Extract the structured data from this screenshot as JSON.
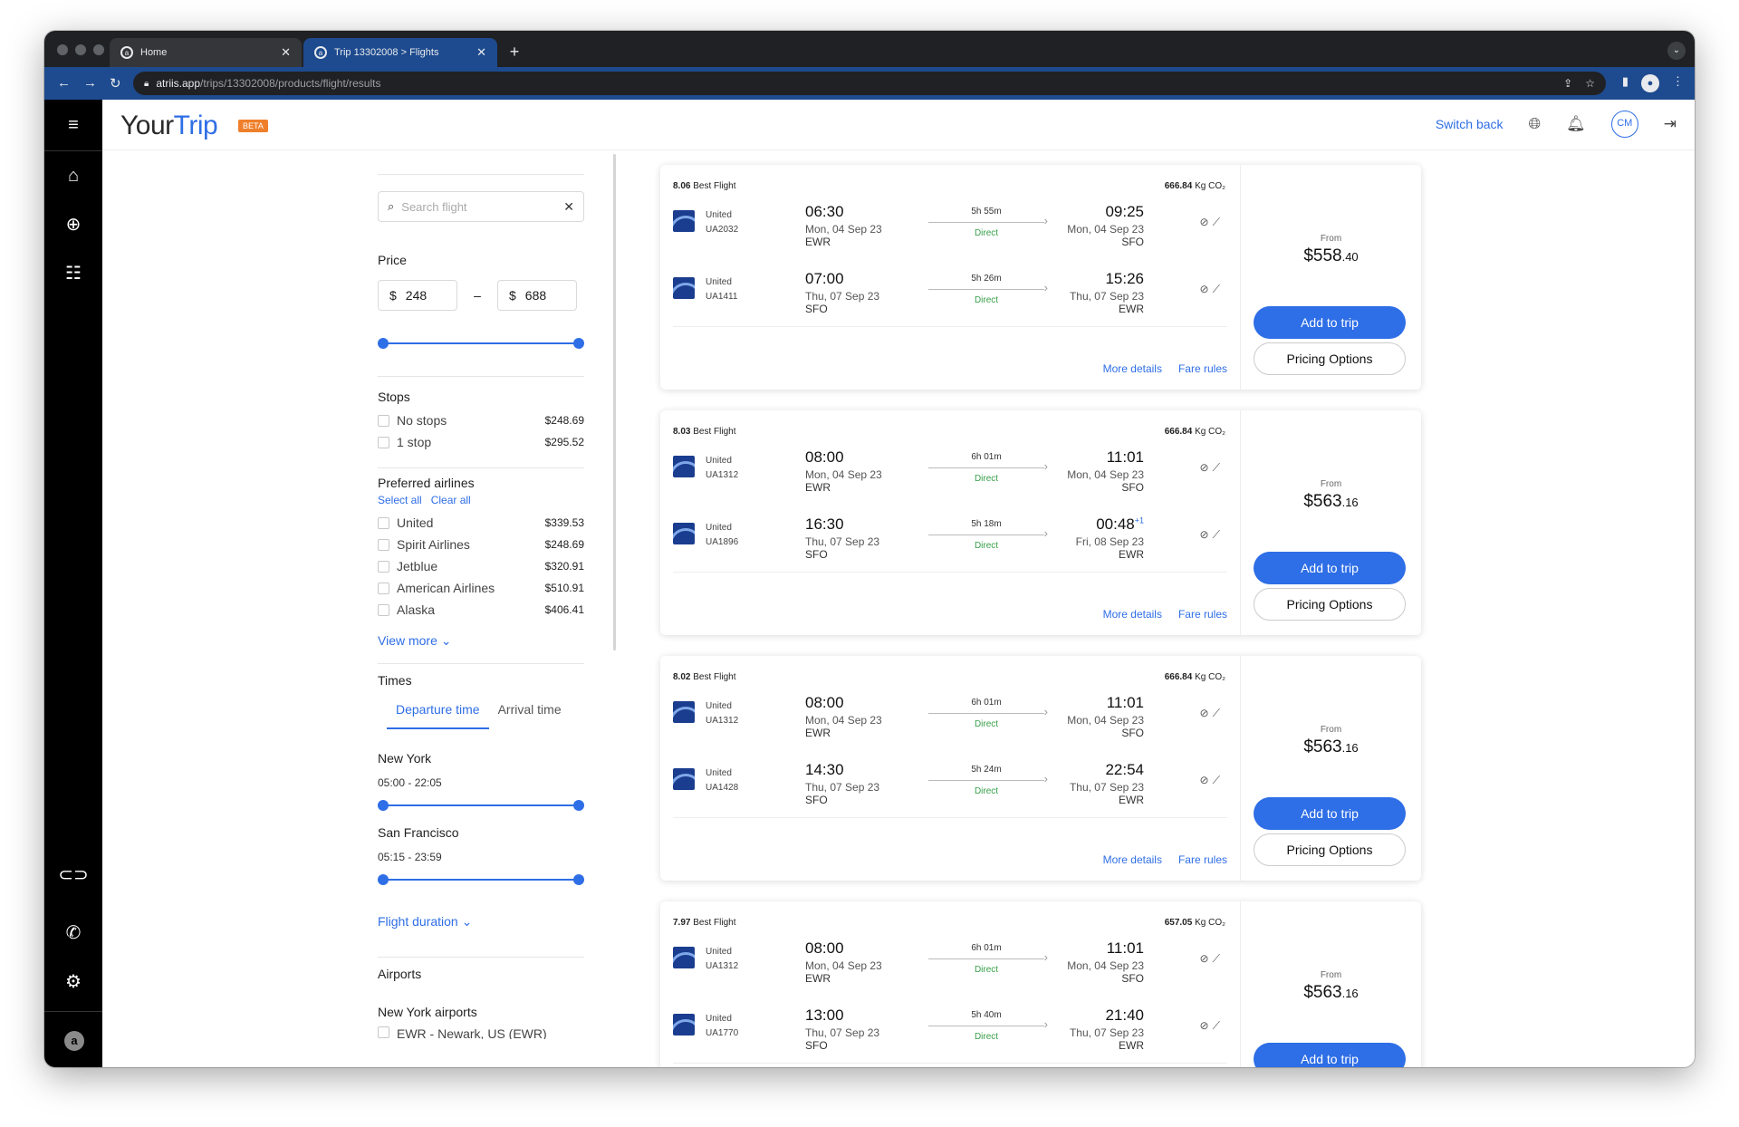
{
  "browser": {
    "tabs": [
      {
        "title": "Home",
        "favicon": "a"
      },
      {
        "title": "Trip 13302008 > Flights",
        "favicon": "a"
      }
    ],
    "url_host": "atriis.app",
    "url_path": "/trips/13302008/products/flight/results"
  },
  "header": {
    "brand_a": "Your",
    "brand_b": "Trip",
    "badge": "BETA",
    "switch_back": "Switch back",
    "avatar": "CM"
  },
  "filters": {
    "search_placeholder": "Search flight",
    "price_title": "Price",
    "currency": "$",
    "price_min": "248",
    "price_max": "688",
    "stops_title": "Stops",
    "stops": [
      {
        "label": "No stops",
        "value": "$248.69"
      },
      {
        "label": "1 stop",
        "value": "$295.52"
      }
    ],
    "airlines_title": "Preferred airlines",
    "select_all": "Select all",
    "clear_all": "Clear all",
    "airlines": [
      {
        "label": "United",
        "value": "$339.53"
      },
      {
        "label": "Spirit Airlines",
        "value": "$248.69"
      },
      {
        "label": "Jetblue",
        "value": "$320.91"
      },
      {
        "label": "American Airlines",
        "value": "$510.91"
      },
      {
        "label": "Alaska",
        "value": "$406.41"
      }
    ],
    "view_more": "View more",
    "times_title": "Times",
    "tab_departure": "Departure time",
    "tab_arrival": "Arrival time",
    "city1": "New York",
    "city1_range": "05:00 - 22:05",
    "city2": "San Francisco",
    "city2_range": "05:15 - 23:59",
    "flight_duration": "Flight duration",
    "airports_title": "Airports",
    "ny_airports": "New York airports",
    "ny_airport_1": "EWR - Newark, US (EWR)"
  },
  "results": [
    {
      "score": "8.06",
      "score_label": "Best Flight",
      "co2": "666.84",
      "co2_unit": "Kg CO₂",
      "legs": [
        {
          "airline": "United",
          "flight": "UA2032",
          "dep_time": "06:30",
          "dep_date": "Mon, 04 Sep 23",
          "dep_ap": "EWR",
          "duration": "5h 55m",
          "stops": "Direct",
          "arr_time": "09:25",
          "arr_plus": "",
          "arr_date": "Mon, 04 Sep 23",
          "arr_ap": "SFO"
        },
        {
          "airline": "United",
          "flight": "UA1411",
          "dep_time": "07:00",
          "dep_date": "Thu, 07 Sep 23",
          "dep_ap": "SFO",
          "duration": "5h 26m",
          "stops": "Direct",
          "arr_time": "15:26",
          "arr_plus": "",
          "arr_date": "Thu, 07 Sep 23",
          "arr_ap": "EWR"
        }
      ],
      "from": "From",
      "price_main": "$558",
      "price_cents": ".40"
    },
    {
      "score": "8.03",
      "score_label": "Best Flight",
      "co2": "666.84",
      "co2_unit": "Kg CO₂",
      "legs": [
        {
          "airline": "United",
          "flight": "UA1312",
          "dep_time": "08:00",
          "dep_date": "Mon, 04 Sep 23",
          "dep_ap": "EWR",
          "duration": "6h 01m",
          "stops": "Direct",
          "arr_time": "11:01",
          "arr_plus": "",
          "arr_date": "Mon, 04 Sep 23",
          "arr_ap": "SFO"
        },
        {
          "airline": "United",
          "flight": "UA1896",
          "dep_time": "16:30",
          "dep_date": "Thu, 07 Sep 23",
          "dep_ap": "SFO",
          "duration": "5h 18m",
          "stops": "Direct",
          "arr_time": "00:48",
          "arr_plus": "+1",
          "arr_date": "Fri, 08 Sep 23",
          "arr_ap": "EWR"
        }
      ],
      "from": "From",
      "price_main": "$563",
      "price_cents": ".16"
    },
    {
      "score": "8.02",
      "score_label": "Best Flight",
      "co2": "666.84",
      "co2_unit": "Kg CO₂",
      "legs": [
        {
          "airline": "United",
          "flight": "UA1312",
          "dep_time": "08:00",
          "dep_date": "Mon, 04 Sep 23",
          "dep_ap": "EWR",
          "duration": "6h 01m",
          "stops": "Direct",
          "arr_time": "11:01",
          "arr_plus": "",
          "arr_date": "Mon, 04 Sep 23",
          "arr_ap": "SFO"
        },
        {
          "airline": "United",
          "flight": "UA1428",
          "dep_time": "14:30",
          "dep_date": "Thu, 07 Sep 23",
          "dep_ap": "SFO",
          "duration": "5h 24m",
          "stops": "Direct",
          "arr_time": "22:54",
          "arr_plus": "",
          "arr_date": "Thu, 07 Sep 23",
          "arr_ap": "EWR"
        }
      ],
      "from": "From",
      "price_main": "$563",
      "price_cents": ".16"
    },
    {
      "score": "7.97",
      "score_label": "Best Flight",
      "co2": "657.05",
      "co2_unit": "Kg CO₂",
      "legs": [
        {
          "airline": "United",
          "flight": "UA1312",
          "dep_time": "08:00",
          "dep_date": "Mon, 04 Sep 23",
          "dep_ap": "EWR",
          "duration": "6h 01m",
          "stops": "Direct",
          "arr_time": "11:01",
          "arr_plus": "",
          "arr_date": "Mon, 04 Sep 23",
          "arr_ap": "SFO"
        },
        {
          "airline": "United",
          "flight": "UA1770",
          "dep_time": "13:00",
          "dep_date": "Thu, 07 Sep 23",
          "dep_ap": "SFO",
          "duration": "5h 40m",
          "stops": "Direct",
          "arr_time": "21:40",
          "arr_plus": "",
          "arr_date": "Thu, 07 Sep 23",
          "arr_ap": "EWR"
        }
      ],
      "from": "From",
      "price_main": "$563",
      "price_cents": ".16"
    }
  ],
  "card_actions": {
    "more_details": "More details",
    "fare_rules": "Fare rules",
    "add_to_trip": "Add to trip",
    "pricing_options": "Pricing Options"
  },
  "icons": {
    "menu": "hamburger-icon",
    "home": "home-icon",
    "add": "plus-circle-icon",
    "list": "list-icon",
    "link": "link-icon",
    "phone": "phone-icon",
    "settings": "gear-icon",
    "globe": "globe-icon",
    "bell": "bell-icon",
    "logout": "logout-icon"
  }
}
